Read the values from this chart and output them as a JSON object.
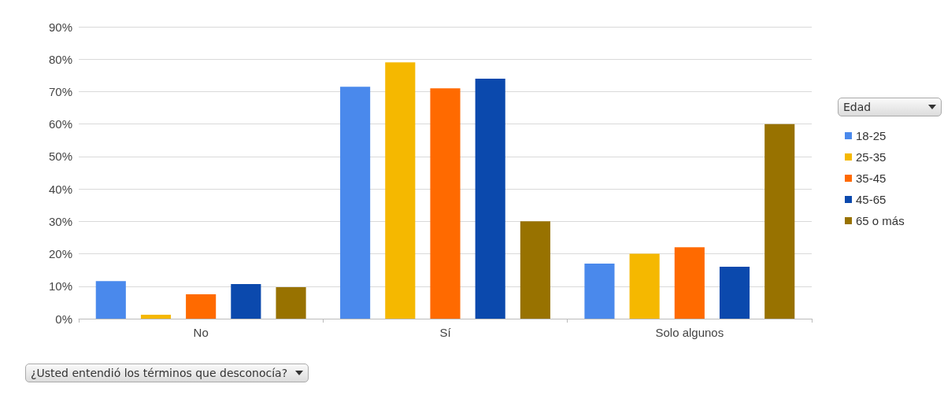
{
  "chart_data": {
    "type": "bar",
    "xlabel": "¿Usted entendió los términos que desconocía?",
    "legend_title": "Edad",
    "categories": [
      "No",
      "Sí",
      "Solo algunos"
    ],
    "series": [
      {
        "name": "18-25",
        "color": "#4a89ec",
        "values": [
          11.6,
          71.5,
          17
        ]
      },
      {
        "name": "25-35",
        "color": "#f5b800",
        "values": [
          1.2,
          79,
          20
        ]
      },
      {
        "name": "35-45",
        "color": "#ff6a00",
        "values": [
          7.5,
          71,
          22
        ]
      },
      {
        "name": "45-65",
        "color": "#0b49ad",
        "values": [
          10.7,
          74,
          16
        ]
      },
      {
        "name": "65 o más",
        "color": "#987200",
        "values": [
          9.7,
          30,
          60
        ]
      }
    ],
    "ylim": [
      0,
      90
    ],
    "yticks": [
      {
        "value": 0,
        "label": "0%"
      },
      {
        "value": 10,
        "label": "10%"
      },
      {
        "value": 20,
        "label": "20%"
      },
      {
        "value": 30,
        "label": "30%"
      },
      {
        "value": 40,
        "label": "40%"
      },
      {
        "value": 50,
        "label": "50%"
      },
      {
        "value": 60,
        "label": "60%"
      },
      {
        "value": 70,
        "label": "70%"
      },
      {
        "value": 80,
        "label": "80%"
      },
      {
        "value": 90,
        "label": "90%"
      }
    ],
    "grid": "y",
    "legend": "right"
  }
}
